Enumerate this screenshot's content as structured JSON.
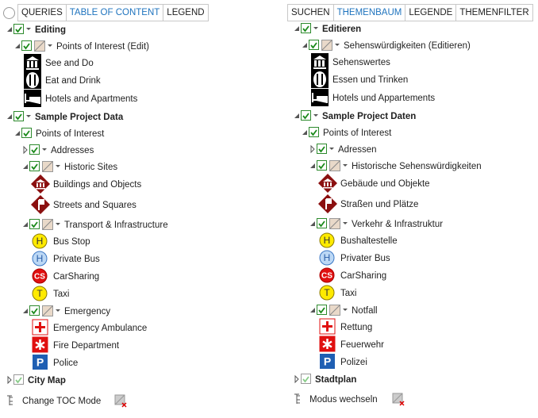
{
  "panels": [
    {
      "tabs": [
        "QUERIES",
        "TABLE OF CONTENT",
        "LEGEND"
      ],
      "active_tab": 1,
      "rows": [
        {
          "label": "Editing"
        },
        {
          "label": "Points of Interest (Edit)"
        },
        {
          "label": "See and Do"
        },
        {
          "label": "Eat and Drink"
        },
        {
          "label": "Hotels and Apartments"
        },
        {
          "label": "Sample Project Data"
        },
        {
          "label": "Points of Interest"
        },
        {
          "label": "Addresses"
        },
        {
          "label": "Historic Sites"
        },
        {
          "label": "Buildings and Objects"
        },
        {
          "label": "Streets and Squares"
        },
        {
          "label": "Transport & Infrastructure"
        },
        {
          "label": "Bus Stop",
          "symbol": "H"
        },
        {
          "label": "Private Bus",
          "symbol": "H"
        },
        {
          "label": "CarSharing",
          "symbol": "CS"
        },
        {
          "label": "Taxi",
          "symbol": "T"
        },
        {
          "label": "Emergency"
        },
        {
          "label": "Emergency Ambulance"
        },
        {
          "label": "Fire Department"
        },
        {
          "label": "Police",
          "symbol": "P"
        },
        {
          "label": "City Map"
        }
      ],
      "footer": "Change TOC Mode"
    },
    {
      "tabs": [
        "SUCHEN",
        "THEMENBAUM",
        "LEGENDE",
        "THEMENFILTER"
      ],
      "active_tab": 1,
      "rows": [
        {
          "label": "Editieren"
        },
        {
          "label": "Sehenswürdigkeiten (Editieren)"
        },
        {
          "label": "Sehenswertes"
        },
        {
          "label": "Essen und Trinken"
        },
        {
          "label": "Hotels und Appartements"
        },
        {
          "label": "Sample Project Daten"
        },
        {
          "label": "Points of Interest"
        },
        {
          "label": "Adressen"
        },
        {
          "label": "Historische Sehenswürdigkeiten"
        },
        {
          "label": "Gebäude und Objekte"
        },
        {
          "label": "Straßen und Plätze"
        },
        {
          "label": "Verkehr & Infrastruktur"
        },
        {
          "label": "Bushaltestelle",
          "symbol": "H"
        },
        {
          "label": "Privater Bus",
          "symbol": "H"
        },
        {
          "label": "CarSharing",
          "symbol": "CS"
        },
        {
          "label": "Taxi",
          "symbol": "T"
        },
        {
          "label": "Notfall"
        },
        {
          "label": "Rettung"
        },
        {
          "label": "Feuerwehr"
        },
        {
          "label": "Polizei",
          "symbol": "P"
        },
        {
          "label": "Stadtplan"
        }
      ],
      "footer": "Modus wechseln"
    }
  ]
}
